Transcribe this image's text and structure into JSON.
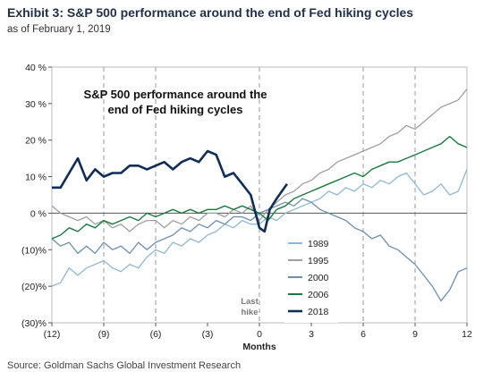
{
  "header": {
    "title": "Exhibit 3: S&P 500 performance around the end of Fed hiking cycles",
    "subtitle": "as of February 1, 2019"
  },
  "source": "Source: Goldman Sachs Global Investment Research",
  "chart_data": {
    "type": "line",
    "title": "S&P 500 performance around the end of Fed hiking cycles",
    "title_lines": [
      "S&P 500 performance around the",
      "end of Fed hiking cycles"
    ],
    "xlabel": "Months",
    "ylabel": "",
    "xlim": [
      -12,
      12
    ],
    "ylim": [
      -30,
      40
    ],
    "x_ticks": [
      -12,
      -9,
      -6,
      -3,
      0,
      3,
      6,
      9,
      12
    ],
    "x_tick_labels": [
      "(12)",
      "(9)",
      "(6)",
      "(3)",
      "0",
      "3",
      "6",
      "9",
      "12"
    ],
    "y_ticks": [
      40,
      30,
      20,
      10,
      0,
      -10,
      -20,
      -30
    ],
    "y_tick_labels": [
      "40 %",
      "30 %",
      "20 %",
      "10 %",
      "0 %",
      "(10)%",
      "(20)%",
      "(30)%"
    ],
    "vertical_lines": [
      -9,
      -6,
      0,
      6,
      9
    ],
    "annotation": {
      "text_lines": [
        "Last",
        "hike"
      ],
      "x": 0
    },
    "legend_position": "bottom-right",
    "series": [
      {
        "name": "1989",
        "color": "#8fb8d8",
        "width": 1.3,
        "points": [
          [
            -12,
            -20
          ],
          [
            -11.5,
            -19
          ],
          [
            -11,
            -15
          ],
          [
            -10.5,
            -17
          ],
          [
            -10,
            -15
          ],
          [
            -9.5,
            -14
          ],
          [
            -9,
            -13
          ],
          [
            -8.5,
            -15
          ],
          [
            -8,
            -16
          ],
          [
            -7.5,
            -14
          ],
          [
            -7,
            -15
          ],
          [
            -6.5,
            -12
          ],
          [
            -6,
            -10
          ],
          [
            -5.5,
            -11
          ],
          [
            -5,
            -8
          ],
          [
            -4.5,
            -9
          ],
          [
            -4,
            -7
          ],
          [
            -3.5,
            -8
          ],
          [
            -3,
            -6
          ],
          [
            -2.5,
            -5
          ],
          [
            -2,
            -3
          ],
          [
            -1.5,
            -4
          ],
          [
            -1,
            -2
          ],
          [
            -0.5,
            -3
          ],
          [
            0,
            -3
          ],
          [
            0.5,
            -1
          ],
          [
            1,
            -2
          ],
          [
            1.5,
            0
          ],
          [
            2,
            1
          ],
          [
            2.5,
            2
          ],
          [
            3,
            3
          ],
          [
            3.5,
            4
          ],
          [
            4,
            6
          ],
          [
            4.5,
            5
          ],
          [
            5,
            7
          ],
          [
            5.5,
            6
          ],
          [
            6,
            8
          ],
          [
            6.5,
            7
          ],
          [
            7,
            9
          ],
          [
            7.5,
            8
          ],
          [
            8,
            10
          ],
          [
            8.5,
            11
          ],
          [
            9,
            8
          ],
          [
            9.5,
            5
          ],
          [
            10,
            6
          ],
          [
            10.5,
            8
          ],
          [
            11,
            5
          ],
          [
            11.5,
            6
          ],
          [
            12,
            12
          ]
        ]
      },
      {
        "name": "1995",
        "color": "#a0a0a0",
        "width": 1.3,
        "points": [
          [
            -12,
            2
          ],
          [
            -11.5,
            0
          ],
          [
            -11,
            -1
          ],
          [
            -10.5,
            -2
          ],
          [
            -10,
            -1
          ],
          [
            -9.5,
            -3
          ],
          [
            -9,
            -2
          ],
          [
            -8.5,
            -4
          ],
          [
            -8,
            -3
          ],
          [
            -7.5,
            -5
          ],
          [
            -7,
            -3
          ],
          [
            -6.5,
            -2
          ],
          [
            -6,
            -2
          ],
          [
            -5.5,
            -4
          ],
          [
            -5,
            -2
          ],
          [
            -4.5,
            -3
          ],
          [
            -4,
            -1
          ],
          [
            -3.5,
            -2
          ],
          [
            -3,
            0
          ],
          [
            -2.5,
            0
          ],
          [
            -2,
            -1
          ],
          [
            -1.5,
            1
          ],
          [
            -1,
            0
          ],
          [
            -0.5,
            2
          ],
          [
            0,
            -2
          ],
          [
            0.5,
            1
          ],
          [
            1,
            3
          ],
          [
            1.5,
            5
          ],
          [
            2,
            6
          ],
          [
            2.5,
            8
          ],
          [
            3,
            9
          ],
          [
            3.5,
            11
          ],
          [
            4,
            12
          ],
          [
            4.5,
            14
          ],
          [
            5,
            15
          ],
          [
            5.5,
            16
          ],
          [
            6,
            17
          ],
          [
            6.5,
            18
          ],
          [
            7,
            19
          ],
          [
            7.5,
            21
          ],
          [
            8,
            22
          ],
          [
            8.5,
            24
          ],
          [
            9,
            23
          ],
          [
            9.5,
            25
          ],
          [
            10,
            27
          ],
          [
            10.5,
            29
          ],
          [
            11,
            30
          ],
          [
            11.5,
            31
          ],
          [
            12,
            34
          ]
        ]
      },
      {
        "name": "2000",
        "color": "#6b8fb3",
        "width": 1.3,
        "points": [
          [
            -12,
            -7
          ],
          [
            -11.5,
            -9
          ],
          [
            -11,
            -8
          ],
          [
            -10.5,
            -11
          ],
          [
            -10,
            -9
          ],
          [
            -9.5,
            -11
          ],
          [
            -9,
            -8
          ],
          [
            -8.5,
            -10
          ],
          [
            -8,
            -9
          ],
          [
            -7.5,
            -11
          ],
          [
            -7,
            -8
          ],
          [
            -6.5,
            -10
          ],
          [
            -6,
            -8
          ],
          [
            -5.5,
            -7
          ],
          [
            -5,
            -6
          ],
          [
            -4.5,
            -4
          ],
          [
            -4,
            -5
          ],
          [
            -3.5,
            -3
          ],
          [
            -3,
            -4
          ],
          [
            -2.5,
            -2
          ],
          [
            -2,
            -3
          ],
          [
            -1.5,
            -1
          ],
          [
            -1,
            -1
          ],
          [
            -0.5,
            -2
          ],
          [
            0,
            0
          ],
          [
            0.5,
            1
          ],
          [
            1,
            2
          ],
          [
            1.5,
            3
          ],
          [
            2,
            2
          ],
          [
            2.5,
            4
          ],
          [
            3,
            3
          ],
          [
            3.5,
            1
          ],
          [
            4,
            0
          ],
          [
            4.5,
            -1
          ],
          [
            5,
            -2
          ],
          [
            5.5,
            -4
          ],
          [
            6,
            -5
          ],
          [
            6.5,
            -7
          ],
          [
            7,
            -6
          ],
          [
            7.5,
            -9
          ],
          [
            8,
            -10
          ],
          [
            8.5,
            -12
          ],
          [
            9,
            -14
          ],
          [
            9.5,
            -17
          ],
          [
            10,
            -20
          ],
          [
            10.5,
            -24
          ],
          [
            11,
            -21
          ],
          [
            11.5,
            -16
          ],
          [
            12,
            -15
          ]
        ]
      },
      {
        "name": "2006",
        "color": "#1a7a3e",
        "width": 1.4,
        "points": [
          [
            -12,
            -7
          ],
          [
            -11.5,
            -6
          ],
          [
            -11,
            -4
          ],
          [
            -10.5,
            -5
          ],
          [
            -10,
            -3
          ],
          [
            -9.5,
            -4
          ],
          [
            -9,
            -2
          ],
          [
            -8.5,
            -3
          ],
          [
            -8,
            -2
          ],
          [
            -7.5,
            -1
          ],
          [
            -7,
            -2
          ],
          [
            -6.5,
            0
          ],
          [
            -6,
            -1
          ],
          [
            -5.5,
            0
          ],
          [
            -5,
            1
          ],
          [
            -4.5,
            0
          ],
          [
            -4,
            1
          ],
          [
            -3.5,
            0
          ],
          [
            -3,
            1
          ],
          [
            -2.5,
            1
          ],
          [
            -2,
            2
          ],
          [
            -1.5,
            1
          ],
          [
            -1,
            2
          ],
          [
            -0.5,
            1
          ],
          [
            0,
            0
          ],
          [
            0.5,
            -2
          ],
          [
            1,
            1
          ],
          [
            1.5,
            2
          ],
          [
            2,
            4
          ],
          [
            2.5,
            5
          ],
          [
            3,
            6
          ],
          [
            3.5,
            7
          ],
          [
            4,
            8
          ],
          [
            4.5,
            9
          ],
          [
            5,
            10
          ],
          [
            5.5,
            11
          ],
          [
            6,
            10
          ],
          [
            6.5,
            12
          ],
          [
            7,
            13
          ],
          [
            7.5,
            14
          ],
          [
            8,
            14
          ],
          [
            8.5,
            15
          ],
          [
            9,
            16
          ],
          [
            9.5,
            17
          ],
          [
            10,
            18
          ],
          [
            10.5,
            19
          ],
          [
            11,
            21
          ],
          [
            11.5,
            19
          ],
          [
            12,
            18
          ]
        ]
      },
      {
        "name": "2018",
        "color": "#0f2d57",
        "width": 2.6,
        "points": [
          [
            -12,
            7
          ],
          [
            -11.5,
            7
          ],
          [
            -11,
            11
          ],
          [
            -10.5,
            15
          ],
          [
            -10,
            9
          ],
          [
            -9.5,
            12
          ],
          [
            -9,
            10
          ],
          [
            -8.5,
            11
          ],
          [
            -8,
            11
          ],
          [
            -7.5,
            13
          ],
          [
            -7,
            13
          ],
          [
            -6.5,
            12
          ],
          [
            -6,
            13
          ],
          [
            -5.5,
            14
          ],
          [
            -5,
            12
          ],
          [
            -4.5,
            14
          ],
          [
            -4,
            15
          ],
          [
            -3.5,
            14
          ],
          [
            -3,
            17
          ],
          [
            -2.5,
            16
          ],
          [
            -2,
            10
          ],
          [
            -1.5,
            11
          ],
          [
            -1,
            8
          ],
          [
            -0.5,
            5
          ],
          [
            0,
            -4
          ],
          [
            0.3,
            -5
          ],
          [
            0.6,
            1
          ],
          [
            1,
            4
          ],
          [
            1.3,
            6
          ],
          [
            1.6,
            8
          ]
        ]
      }
    ]
  }
}
